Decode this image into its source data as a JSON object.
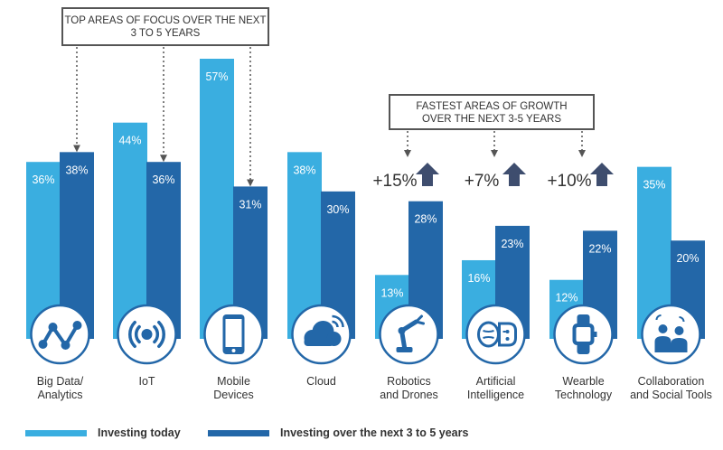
{
  "callouts": {
    "focus": [
      "TOP AREAS OF FOCUS OVER THE NEXT",
      "3 TO 5 YEARS"
    ],
    "growth": [
      "FASTEST AREAS OF GROWTH",
      "OVER THE NEXT 3-5 YEARS"
    ]
  },
  "colors": {
    "today": "#3aaee0",
    "future": "#2367a8",
    "circle_bg": "#ffffff",
    "circle_border": "#2367a8",
    "icon": "#2367a8",
    "arrow": "#3e4d6e",
    "text": "#333333"
  },
  "chart_data": {
    "type": "bar",
    "categories": [
      [
        "Big Data/",
        "Analytics"
      ],
      [
        "IoT"
      ],
      [
        "Mobile",
        "Devices"
      ],
      [
        "Cloud"
      ],
      [
        "Robotics",
        "and Drones"
      ],
      [
        "Artificial",
        "Intelligence"
      ],
      [
        "Wearble",
        "Technology"
      ],
      [
        "Collaboration",
        "and Social Tools"
      ]
    ],
    "series": [
      {
        "name": "Investing today",
        "values": [
          36,
          44,
          57,
          38,
          13,
          16,
          12,
          35
        ]
      },
      {
        "name": "Investing over the next 3 to 5 years",
        "values": [
          38,
          36,
          31,
          30,
          28,
          23,
          22,
          20
        ]
      }
    ],
    "value_labels": {
      "today": [
        "36%",
        "44%",
        "57%",
        "38%",
        "13%",
        "16%",
        "12%",
        "35%"
      ],
      "future": [
        "38%",
        "36%",
        "31%",
        "30%",
        "28%",
        "23%",
        "22%",
        "20%"
      ]
    },
    "growth_annotations": [
      {
        "category_index": 4,
        "label": "+15%"
      },
      {
        "category_index": 5,
        "label": "+7%"
      },
      {
        "category_index": 6,
        "label": "+10%"
      }
    ],
    "icons": [
      "analytics-icon",
      "iot-signal-icon",
      "mobile-device-icon",
      "cloud-icon",
      "robot-arm-icon",
      "ai-brain-chip-icon",
      "smartwatch-icon",
      "people-chat-icon"
    ],
    "legend_position": "bottom-left",
    "grid": false
  },
  "legend": {
    "today_label": "Investing today",
    "future_label": "Investing over the next 3 to 5 years"
  }
}
